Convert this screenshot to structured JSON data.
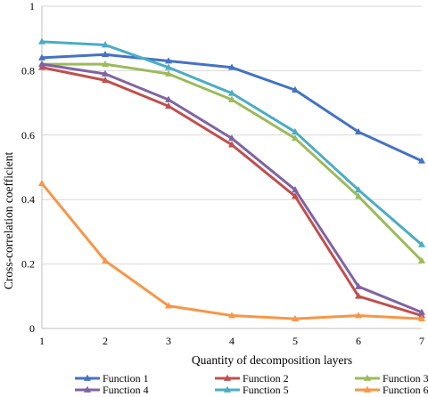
{
  "chart_data": {
    "type": "line",
    "title": "",
    "xlabel": "Quantity of decomposition layers",
    "ylabel": "Cross-correlation coefficient",
    "x": [
      1,
      2,
      3,
      4,
      5,
      6,
      7
    ],
    "xlim": [
      1,
      7
    ],
    "ylim": [
      0,
      1
    ],
    "yticks": [
      "0",
      "0.2",
      "0.4",
      "0.6",
      "0.8",
      "1"
    ],
    "grid": "horizontal",
    "legend_position": "bottom",
    "series": [
      {
        "name": "Function 1",
        "color": "#4472C4",
        "values": [
          0.84,
          0.85,
          0.83,
          0.81,
          0.74,
          0.61,
          0.52
        ]
      },
      {
        "name": "Function 2",
        "color": "#C0504D",
        "values": [
          0.81,
          0.77,
          0.69,
          0.57,
          0.41,
          0.1,
          0.04
        ]
      },
      {
        "name": "Function 3",
        "color": "#9BBB59",
        "values": [
          0.82,
          0.82,
          0.79,
          0.71,
          0.59,
          0.41,
          0.21
        ]
      },
      {
        "name": "Function 4",
        "color": "#8064A2",
        "values": [
          0.82,
          0.79,
          0.71,
          0.59,
          0.43,
          0.13,
          0.05
        ]
      },
      {
        "name": "Function 5",
        "color": "#4BACC6",
        "values": [
          0.89,
          0.88,
          0.81,
          0.73,
          0.61,
          0.43,
          0.26
        ]
      },
      {
        "name": "Function 6",
        "color": "#F79646",
        "values": [
          0.45,
          0.21,
          0.07,
          0.04,
          0.03,
          0.04,
          0.03
        ]
      }
    ]
  }
}
